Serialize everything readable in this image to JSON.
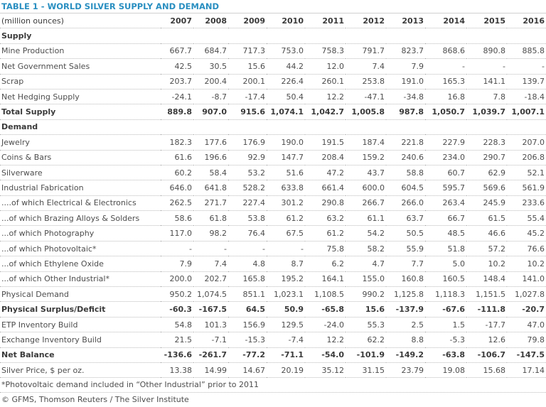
{
  "title": "TABLE 1 - WORLD SILVER SUPPLY AND DEMAND",
  "unit_label": "(million ounces)",
  "years": [
    "2007",
    "2008",
    "2009",
    "2010",
    "2011",
    "2012",
    "2013",
    "2014",
    "2015",
    "2016"
  ],
  "rows": [
    {
      "label": "Supply",
      "style": "section",
      "values": []
    },
    {
      "label": "Mine Production",
      "style": "normal",
      "values": [
        "667.7",
        "684.7",
        "717.3",
        "753.0",
        "758.3",
        "791.7",
        "823.7",
        "868.6",
        "890.8",
        "885.8"
      ]
    },
    {
      "label": "Net Government Sales",
      "style": "normal",
      "values": [
        "42.5",
        "30.5",
        "15.6",
        "44.2",
        "12.0",
        "7.4",
        "7.9",
        "-",
        "-",
        "-"
      ]
    },
    {
      "label": "Scrap",
      "style": "normal",
      "values": [
        "203.7",
        "200.4",
        "200.1",
        "226.4",
        "260.1",
        "253.8",
        "191.0",
        "165.3",
        "141.1",
        "139.7"
      ]
    },
    {
      "label": "Net Hedging Supply",
      "style": "normal",
      "values": [
        "-24.1",
        "-8.7",
        "-17.4",
        "50.4",
        "12.2",
        "-47.1",
        "-34.8",
        "16.8",
        "7.8",
        "-18.4"
      ]
    },
    {
      "label": "Total Supply",
      "style": "bold",
      "values": [
        "889.8",
        "907.0",
        "915.6",
        "1,074.1",
        "1,042.7",
        "1,005.8",
        "987.8",
        "1,050.7",
        "1,039.7",
        "1,007.1"
      ]
    },
    {
      "label": "Demand",
      "style": "section",
      "values": []
    },
    {
      "label": "Jewelry",
      "style": "normal",
      "values": [
        "182.3",
        "177.6",
        "176.9",
        "190.0",
        "191.5",
        "187.4",
        "221.8",
        "227.9",
        "228.3",
        "207.0"
      ]
    },
    {
      "label": "Coins & Bars",
      "style": "normal",
      "values": [
        "61.6",
        "196.6",
        "92.9",
        "147.7",
        "208.4",
        "159.2",
        "240.6",
        "234.0",
        "290.7",
        "206.8"
      ]
    },
    {
      "label": "Silverware",
      "style": "normal",
      "values": [
        "60.2",
        "58.4",
        "53.2",
        "51.6",
        "47.2",
        "43.7",
        "58.8",
        "60.7",
        "62.9",
        "52.1"
      ]
    },
    {
      "label": "Industrial Fabrication",
      "style": "normal",
      "values": [
        "646.0",
        "641.8",
        "528.2",
        "633.8",
        "661.4",
        "600.0",
        "604.5",
        "595.7",
        "569.6",
        "561.9"
      ]
    },
    {
      "label": "....of which Electrical & Electronics",
      "style": "normal",
      "values": [
        "262.5",
        "271.7",
        "227.4",
        "301.2",
        "290.8",
        "266.7",
        "266.0",
        "263.4",
        "245.9",
        "233.6"
      ]
    },
    {
      "label": "...of which Brazing Alloys & Solders",
      "style": "normal",
      "values": [
        "58.6",
        "61.8",
        "53.8",
        "61.2",
        "63.2",
        "61.1",
        "63.7",
        "66.7",
        "61.5",
        "55.4"
      ]
    },
    {
      "label": "...of which Photography",
      "style": "normal",
      "values": [
        "117.0",
        "98.2",
        "76.4",
        "67.5",
        "61.2",
        "54.2",
        "50.5",
        "48.5",
        "46.6",
        "45.2"
      ]
    },
    {
      "label": "...of which Photovoltaic*",
      "style": "normal",
      "values": [
        "-",
        "-",
        "-",
        "-",
        "75.8",
        "58.2",
        "55.9",
        "51.8",
        "57.2",
        "76.6"
      ]
    },
    {
      "label": "...of which Ethylene Oxide",
      "style": "normal",
      "values": [
        "7.9",
        "7.4",
        "4.8",
        "8.7",
        "6.2",
        "4.7",
        "7.7",
        "5.0",
        "10.2",
        "10.2"
      ]
    },
    {
      "label": "...of which Other Industrial*",
      "style": "normal",
      "values": [
        "200.0",
        "202.7",
        "165.8",
        "195.2",
        "164.1",
        "155.0",
        "160.8",
        "160.5",
        "148.4",
        "141.0"
      ]
    },
    {
      "label": "Physical Demand",
      "style": "normal",
      "values": [
        "950.2",
        "1,074.5",
        "851.1",
        "1,023.1",
        "1,108.5",
        "990.2",
        "1,125.8",
        "1,118.3",
        "1,151.5",
        "1,027.8"
      ]
    },
    {
      "label": "Physical Surplus/Deficit",
      "style": "bold",
      "values": [
        "-60.3",
        "-167.5",
        "64.5",
        "50.9",
        "-65.8",
        "15.6",
        "-137.9",
        "-67.6",
        "-111.8",
        "-20.7"
      ]
    },
    {
      "label": "ETP Inventory Build",
      "style": "normal",
      "values": [
        "54.8",
        "101.3",
        "156.9",
        "129.5",
        "-24.0",
        "55.3",
        "2.5",
        "1.5",
        "-17.7",
        "47.0"
      ]
    },
    {
      "label": "Exchange Inventory Build",
      "style": "normal",
      "values": [
        "21.5",
        "-7.1",
        "-15.3",
        "-7.4",
        "12.2",
        "62.2",
        "8.8",
        "-5.3",
        "12.6",
        "79.8"
      ]
    },
    {
      "label": "Net Balance",
      "style": "bold",
      "values": [
        "-136.6",
        "-261.7",
        "-77.2",
        "-71.1",
        "-54.0",
        "-101.9",
        "-149.2",
        "-63.8",
        "-106.7",
        "-147.5"
      ]
    },
    {
      "label": "Silver Price, $ per oz.",
      "style": "normal",
      "values": [
        "13.38",
        "14.99",
        "14.67",
        "20.19",
        "35.12",
        "31.15",
        "23.79",
        "19.08",
        "15.68",
        "17.14"
      ]
    }
  ],
  "footnote": "*Photovoltaic demand included in “Other Industrial” prior to 2011",
  "source": "© GFMS, Thomson Reuters / The Silver Institute"
}
